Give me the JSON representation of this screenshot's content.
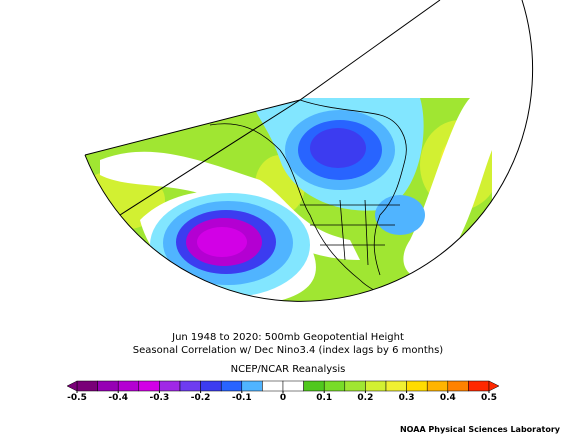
{
  "title_lines": [
    "Jun 1948 to 2020: 500mb Geopotential Height",
    "Seasonal Correlation w/ Dec Nino3.4 (index lags by 6 months)"
  ],
  "subtitle": "NCEP/NCAR Reanalysis",
  "colorbar": {
    "ticks": [
      -0.5,
      -0.4,
      -0.3,
      -0.2,
      -0.1,
      0,
      0.1,
      0.2,
      0.3,
      0.4,
      0.5
    ],
    "colors": [
      "#7a0078",
      "#9600b4",
      "#b400d2",
      "#d200e6",
      "#a028e6",
      "#6e3cf0",
      "#3c3cf0",
      "#2864ff",
      "#50b4ff",
      "#ffffff",
      "#ffffff",
      "#50c81e",
      "#78dc28",
      "#a0e632",
      "#d2f032",
      "#f0f032",
      "#ffdc00",
      "#ffb400",
      "#ff8200",
      "#ff2800"
    ]
  },
  "credit": "NOAA Physical Sciences Laboratory"
}
